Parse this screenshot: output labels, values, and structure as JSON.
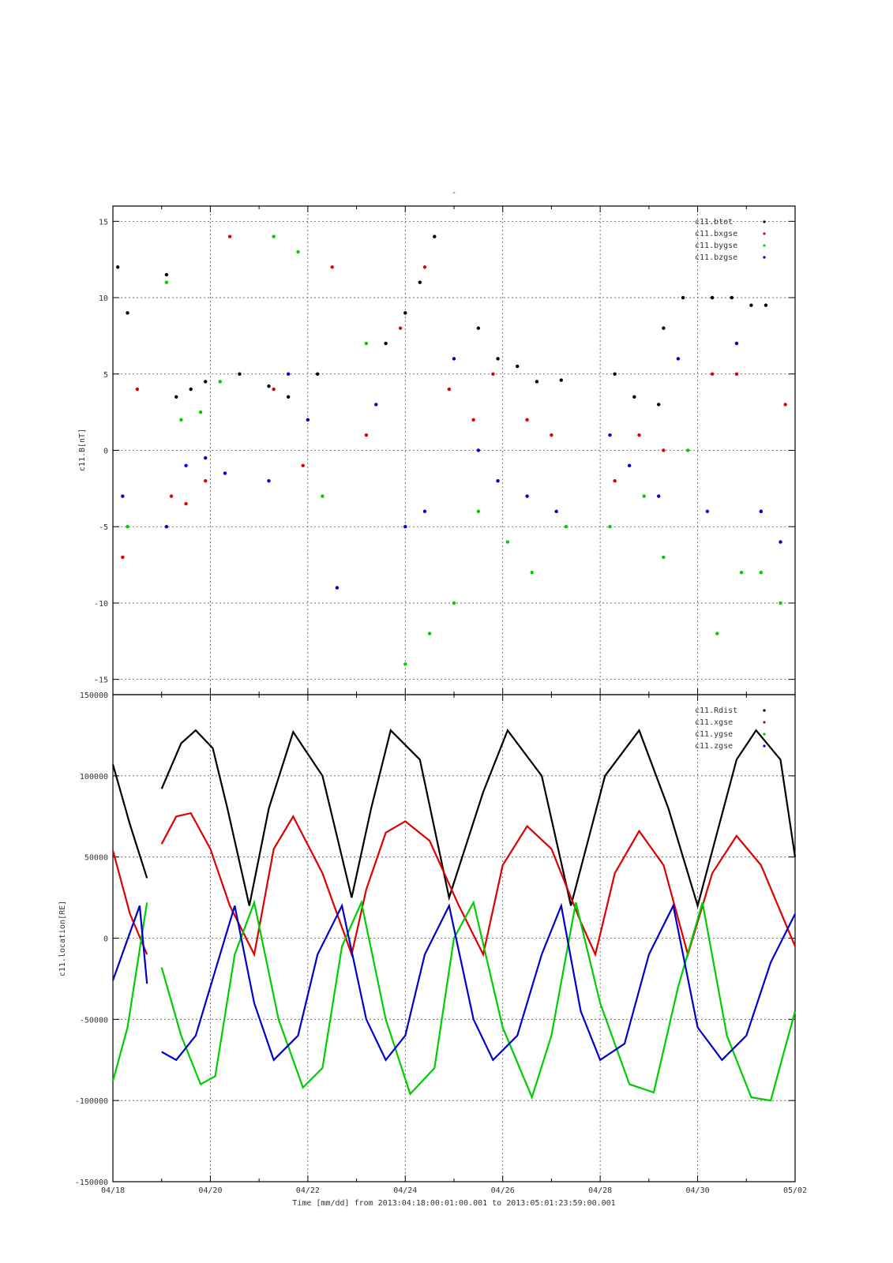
{
  "figure": {
    "top_mark": "-",
    "footer": "Time [mm/dd]  from 2013:04:18:00:01:00.001  to  2013:05:01:23:59:00.001"
  },
  "chart_data": [
    {
      "type": "scatter",
      "ylabel": "c11.B[nT]",
      "xlabel": "",
      "ylim": [
        -16,
        16
      ],
      "yticks": [
        -15,
        -10,
        -5,
        0,
        5,
        10,
        15
      ],
      "xlim": [
        0,
        14
      ],
      "grid": true,
      "legend_position": "top-right",
      "legend": [
        "c11.btot",
        "c11.bxgse",
        "c11.bygse",
        "c11.bzgse"
      ],
      "colors": {
        "c11.btot": "#000000",
        "c11.bxgse": "#dd0000",
        "c11.bygse": "#00cc00",
        "c11.bzgse": "#0000cc"
      },
      "series": [
        {
          "name": "c11.btot",
          "color": "#000000",
          "x": [
            0.1,
            0.3,
            1.1,
            1.3,
            1.6,
            1.9,
            2.6,
            3.2,
            3.6,
            4.2,
            5.6,
            6.0,
            6.3,
            6.6,
            7.5,
            7.9,
            8.3,
            8.7,
            9.2,
            10.3,
            10.7,
            11.2,
            11.3,
            11.7,
            12.3,
            12.7,
            13.1,
            13.4
          ],
          "y": [
            12,
            9,
            11.5,
            3.5,
            4,
            4.5,
            5,
            4.2,
            3.5,
            5,
            7,
            9,
            11,
            14,
            8,
            6,
            5.5,
            4.5,
            4.6,
            5,
            3.5,
            3,
            8,
            10,
            10,
            10,
            9.5,
            9.5
          ]
        },
        {
          "name": "c11.bxgse",
          "color": "#dd0000",
          "x": [
            0.2,
            0.5,
            1.2,
            1.5,
            1.9,
            2.4,
            3.3,
            3.9,
            4.5,
            5.2,
            5.9,
            6.4,
            6.9,
            7.4,
            7.8,
            8.5,
            9.0,
            10.3,
            10.8,
            11.3,
            12.3,
            12.8,
            13.3,
            13.8
          ],
          "y": [
            -7,
            4,
            -3,
            -3.5,
            -2,
            14,
            4,
            -1,
            12,
            1,
            8,
            12,
            4,
            2,
            5,
            2,
            1,
            -2,
            1,
            0,
            5,
            5,
            -4,
            3
          ]
        },
        {
          "name": "c11.bygse",
          "color": "#00cc00",
          "x": [
            0.3,
            1.1,
            1.4,
            1.8,
            2.2,
            3.3,
            3.8,
            4.3,
            5.2,
            6.0,
            6.5,
            7.0,
            7.5,
            8.1,
            8.6,
            9.3,
            10.2,
            10.9,
            11.3,
            11.8,
            12.4,
            12.9,
            13.3,
            13.7
          ],
          "y": [
            -5,
            11,
            2,
            2.5,
            4.5,
            14,
            13,
            -3,
            7,
            -14,
            -12,
            -10,
            -4,
            -6,
            -8,
            -5,
            -5,
            -3,
            -7,
            0,
            -12,
            -8,
            -8,
            -10
          ]
        },
        {
          "name": "c11.bzgse",
          "color": "#0000cc",
          "x": [
            0.2,
            1.1,
            1.5,
            1.9,
            2.3,
            3.2,
            3.6,
            4.0,
            4.6,
            5.4,
            6.0,
            6.4,
            7.0,
            7.5,
            7.9,
            8.5,
            9.1,
            10.2,
            10.6,
            11.2,
            11.6,
            12.2,
            12.8,
            13.3,
            13.7
          ],
          "y": [
            -3,
            -5,
            -1,
            -0.5,
            -1.5,
            -2,
            5,
            2,
            -9,
            3,
            -5,
            -4,
            6,
            0,
            -2,
            -3,
            -4,
            1,
            -1,
            -3,
            6,
            -4,
            7,
            -4,
            -6
          ]
        }
      ]
    },
    {
      "type": "line",
      "ylabel": "c11.location[RE]",
      "xlabel": "Time [mm/dd]",
      "ylim": [
        -150000,
        150000
      ],
      "yticks": [
        -150000,
        -100000,
        -50000,
        0,
        50000,
        100000,
        150000
      ],
      "xlim": [
        0,
        14
      ],
      "xticks": [
        "04/18",
        "04/20",
        "04/22",
        "04/24",
        "04/26",
        "04/28",
        "04/30",
        "05/02"
      ],
      "grid": true,
      "legend_position": "top-right",
      "legend": [
        "c11.Rdist",
        "c11.xgse",
        "c11.ygse",
        "c11.zgse"
      ],
      "colors": {
        "c11.Rdist": "#000000",
        "c11.xgse": "#dd0000",
        "c11.ygse": "#00cc00",
        "c11.zgse": "#0000cc"
      },
      "data_gap": [
        0.7,
        1.0
      ],
      "series": [
        {
          "name": "c11.Rdist",
          "color": "#000000",
          "x": [
            0.0,
            0.35,
            0.7,
            1.0,
            1.4,
            1.7,
            2.05,
            2.35,
            2.8,
            3.2,
            3.7,
            4.3,
            4.9,
            5.3,
            5.7,
            6.3,
            6.9,
            7.6,
            8.1,
            8.8,
            9.4,
            10.1,
            10.8,
            11.4,
            12.0,
            12.8,
            13.2,
            13.7,
            14.0
          ],
          "y": [
            107000,
            70000,
            37000,
            92000,
            120000,
            128000,
            117000,
            80000,
            20000,
            80000,
            127000,
            100000,
            25000,
            80000,
            128000,
            110000,
            25000,
            90000,
            128000,
            100000,
            20000,
            100000,
            128000,
            80000,
            20000,
            110000,
            128000,
            110000,
            50000
          ]
        },
        {
          "name": "c11.xgse",
          "color": "#dd0000",
          "x": [
            0.0,
            0.35,
            0.7,
            1.0,
            1.3,
            1.6,
            2.0,
            2.4,
            2.9,
            3.3,
            3.7,
            4.3,
            4.9,
            5.2,
            5.6,
            6.0,
            6.5,
            7.1,
            7.6,
            8.0,
            8.5,
            9.0,
            9.6,
            9.9,
            10.3,
            10.8,
            11.3,
            11.8,
            12.3,
            12.8,
            13.3,
            14.0
          ],
          "y": [
            54000,
            15000,
            -10000,
            58000,
            75000,
            77000,
            55000,
            20000,
            -10000,
            55000,
            75000,
            40000,
            -10000,
            30000,
            65000,
            72000,
            60000,
            20000,
            -10000,
            45000,
            69000,
            55000,
            10000,
            -10000,
            40000,
            66000,
            45000,
            -10000,
            40000,
            63000,
            45000,
            -5000
          ]
        },
        {
          "name": "c11.ygse",
          "color": "#00cc00",
          "x": [
            0.0,
            0.3,
            0.7,
            1.0,
            1.4,
            1.8,
            2.1,
            2.5,
            2.9,
            3.4,
            3.9,
            4.3,
            4.7,
            5.1,
            5.6,
            6.1,
            6.6,
            7.0,
            7.4,
            8.0,
            8.6,
            9.0,
            9.5,
            10.0,
            10.6,
            11.1,
            11.6,
            12.1,
            12.6,
            13.1,
            13.5,
            14.0
          ],
          "y": [
            -88000,
            -55000,
            22000,
            -18000,
            -60000,
            -90000,
            -85000,
            -10000,
            22000,
            -50000,
            -92000,
            -80000,
            -5000,
            22000,
            -50000,
            -96000,
            -80000,
            0,
            22000,
            -55000,
            -98000,
            -60000,
            22000,
            -40000,
            -90000,
            -95000,
            -30000,
            22000,
            -60000,
            -98000,
            -100000,
            -45000
          ]
        },
        {
          "name": "c11.zgse",
          "color": "#0000cc",
          "x": [
            0.0,
            0.25,
            0.55,
            0.7,
            1.0,
            1.3,
            1.7,
            2.1,
            2.5,
            2.9,
            3.3,
            3.8,
            4.2,
            4.7,
            5.2,
            5.6,
            6.0,
            6.4,
            6.9,
            7.4,
            7.8,
            8.3,
            8.8,
            9.2,
            9.6,
            10.0,
            10.5,
            11.0,
            11.5,
            12.0,
            12.5,
            13.0,
            13.5,
            14.0
          ],
          "y": [
            -26000,
            -5000,
            20000,
            -28000,
            -70000,
            -75000,
            -60000,
            -20000,
            20000,
            -40000,
            -75000,
            -60000,
            -10000,
            20000,
            -50000,
            -75000,
            -60000,
            -10000,
            20000,
            -50000,
            -75000,
            -60000,
            -10000,
            20000,
            -45000,
            -75000,
            -65000,
            -10000,
            20000,
            -55000,
            -75000,
            -60000,
            -15000,
            15000
          ]
        }
      ]
    }
  ]
}
